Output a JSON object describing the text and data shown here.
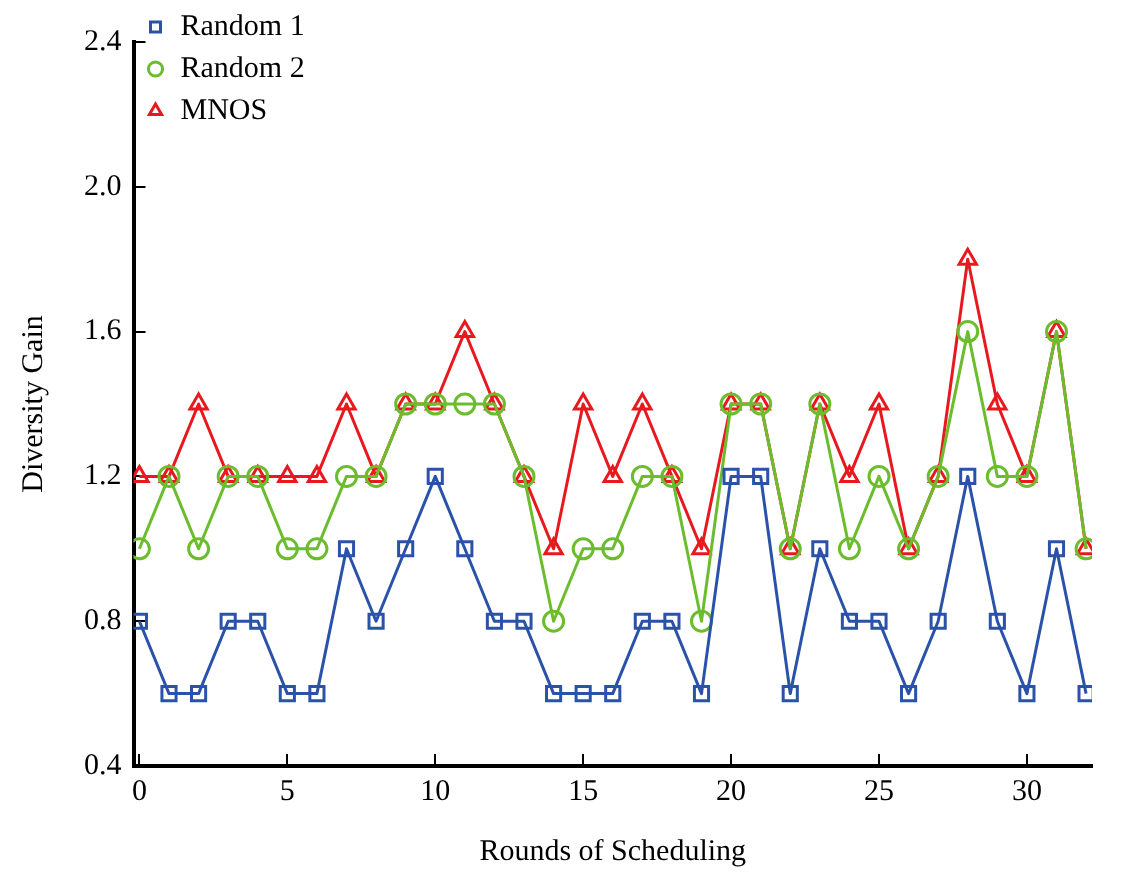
{
  "chart_data": {
    "type": "line",
    "xlabel": "Rounds of Scheduling",
    "ylabel": "Diversity Gain",
    "x": [
      0,
      1,
      2,
      3,
      4,
      5,
      6,
      7,
      8,
      9,
      10,
      11,
      12,
      13,
      14,
      15,
      16,
      17,
      18,
      19,
      20,
      21,
      22,
      23,
      24,
      25,
      26,
      27,
      28,
      29,
      30,
      31,
      32
    ],
    "xlim": [
      -0.2,
      32.2
    ],
    "xticks": [
      0,
      5,
      10,
      15,
      20,
      25,
      30
    ],
    "ylim": [
      0.4,
      2.4
    ],
    "yticks": [
      {
        "value": 0.4,
        "label": "0.4"
      },
      {
        "value": 0.8,
        "label": "0.8"
      },
      {
        "value": 1.2,
        "label": "1.2"
      },
      {
        "value": 1.6,
        "label": "1.6"
      },
      {
        "value": 2.0,
        "label": "2.0"
      },
      {
        "value": 2.4,
        "label": "2.4"
      }
    ],
    "grid": false,
    "legend": "top left",
    "line_style": "solid",
    "series": [
      {
        "name": "Random 1",
        "color": "#2a52a8",
        "marker": "square",
        "values": [
          0.8,
          0.6,
          0.6,
          0.8,
          0.8,
          0.6,
          0.6,
          1.0,
          0.8,
          1.0,
          1.2,
          1.0,
          0.8,
          0.8,
          0.6,
          0.6,
          0.6,
          0.8,
          0.8,
          0.6,
          1.2,
          1.2,
          0.6,
          1.0,
          0.8,
          0.8,
          0.6,
          0.8,
          1.2,
          0.8,
          0.6,
          1.0,
          0.6
        ]
      },
      {
        "name": "Random 2",
        "color": "#6cbd2e",
        "marker": "circle",
        "values": [
          1.0,
          1.2,
          1.0,
          1.2,
          1.2,
          1.0,
          1.0,
          1.2,
          1.2,
          1.4,
          1.4,
          1.4,
          1.4,
          1.2,
          0.8,
          1.0,
          1.0,
          1.2,
          1.2,
          0.8,
          1.4,
          1.4,
          1.0,
          1.4,
          1.0,
          1.2,
          1.0,
          1.2,
          1.6,
          1.2,
          1.2,
          1.6,
          1.0
        ]
      },
      {
        "name": "MNOS",
        "color": "#e8191e",
        "marker": "triangle",
        "values": [
          1.2,
          1.2,
          1.4,
          1.2,
          1.2,
          1.2,
          1.2,
          1.4,
          1.2,
          1.4,
          1.4,
          1.6,
          1.4,
          1.2,
          1.0,
          1.4,
          1.2,
          1.4,
          1.2,
          1.0,
          1.4,
          1.4,
          1.0,
          1.4,
          1.2,
          1.4,
          1.0,
          1.2,
          1.8,
          1.4,
          1.2,
          1.6,
          1.0
        ]
      }
    ]
  }
}
